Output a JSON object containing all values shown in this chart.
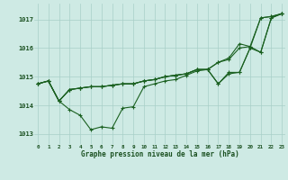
{
  "title": "Graphe pression niveau de la mer (hPa)",
  "background_color": "#ceeae4",
  "grid_color": "#a8cfc8",
  "line_color": "#1a6020",
  "xlabel_color": "#1a5020",
  "hours": [
    0,
    1,
    2,
    3,
    4,
    5,
    6,
    7,
    8,
    9,
    10,
    11,
    12,
    13,
    14,
    15,
    16,
    17,
    18,
    19,
    20,
    21,
    22,
    23
  ],
  "series1": [
    1014.75,
    1014.85,
    1014.15,
    1013.85,
    1013.65,
    1013.15,
    1013.25,
    1013.2,
    1013.9,
    1013.95,
    1014.65,
    1014.75,
    1014.85,
    1014.9,
    1015.05,
    1015.2,
    1015.25,
    1014.75,
    1015.1,
    1015.15,
    1016.0,
    1017.05,
    1017.1,
    1017.2
  ],
  "series2": [
    1014.75,
    1014.85,
    1014.15,
    1014.55,
    1014.6,
    1014.65,
    1014.65,
    1014.7,
    1014.75,
    1014.75,
    1014.85,
    1014.9,
    1015.0,
    1015.05,
    1015.1,
    1015.25,
    1015.25,
    1015.5,
    1015.6,
    1016.0,
    1016.05,
    1017.05,
    1017.1,
    1017.2
  ],
  "series3": [
    1014.75,
    1014.85,
    1014.15,
    1014.55,
    1014.6,
    1014.65,
    1014.65,
    1014.7,
    1014.75,
    1014.75,
    1014.85,
    1014.9,
    1015.0,
    1015.05,
    1015.1,
    1015.25,
    1015.25,
    1014.75,
    1015.15,
    1015.15,
    1016.0,
    1015.85,
    1017.05,
    1017.2
  ],
  "series4": [
    1014.75,
    1014.85,
    1014.15,
    1014.55,
    1014.6,
    1014.65,
    1014.65,
    1014.7,
    1014.75,
    1014.75,
    1014.85,
    1014.9,
    1015.0,
    1015.05,
    1015.1,
    1015.25,
    1015.25,
    1015.5,
    1015.65,
    1016.15,
    1016.05,
    1015.85,
    1017.05,
    1017.2
  ],
  "ylim": [
    1012.65,
    1017.55
  ],
  "yticks": [
    1013,
    1014,
    1015,
    1016,
    1017
  ],
  "xlim": [
    -0.3,
    23.3
  ],
  "xticks": [
    0,
    1,
    2,
    3,
    4,
    5,
    6,
    7,
    8,
    9,
    10,
    11,
    12,
    13,
    14,
    15,
    16,
    17,
    18,
    19,
    20,
    21,
    22,
    23
  ]
}
